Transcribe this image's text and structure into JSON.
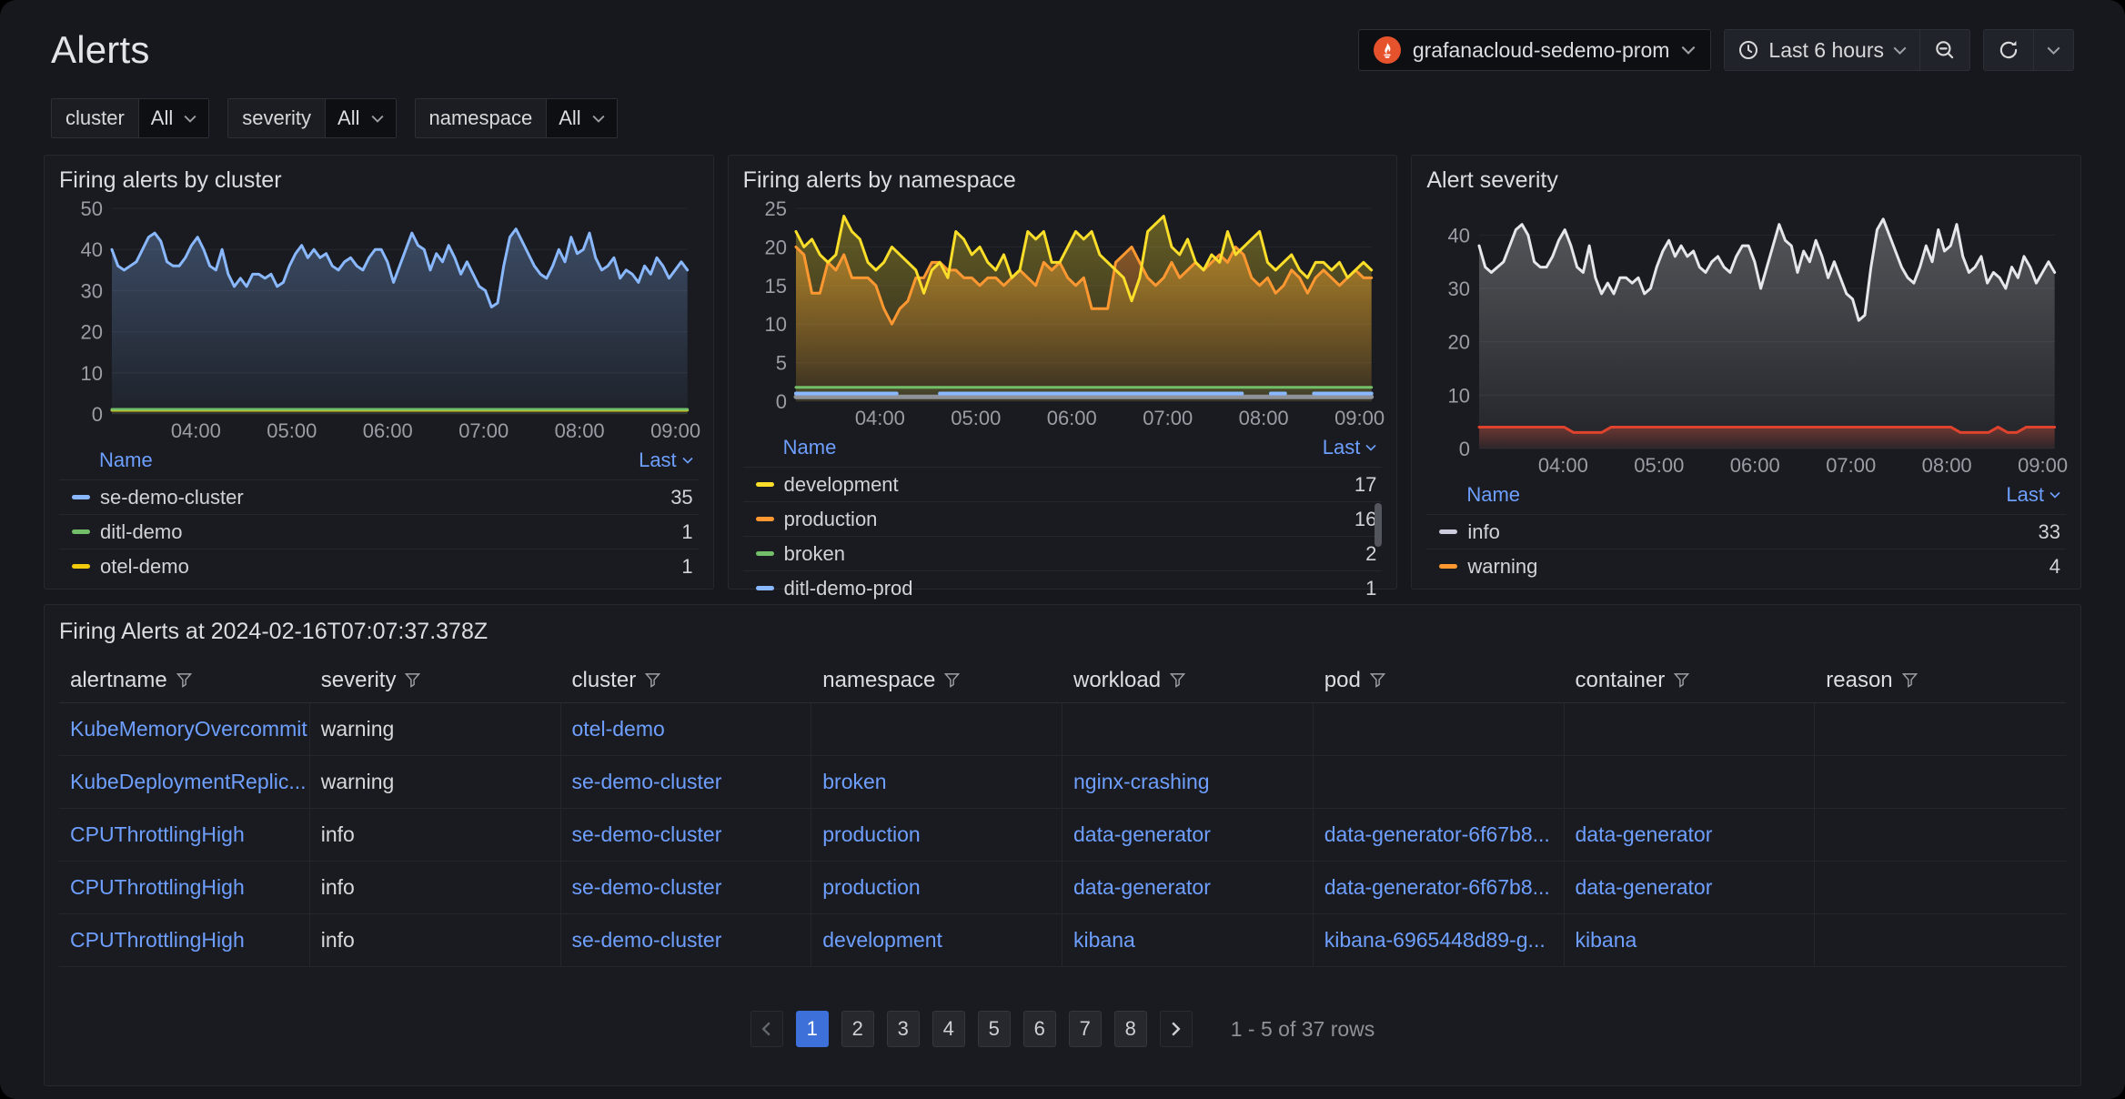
{
  "header": {
    "title": "Alerts",
    "datasource": "grafanacloud-sedemo-prom",
    "time_range": "Last 6 hours"
  },
  "colors": {
    "accent_blue": "#3d71d9",
    "link_blue": "#6e9fff",
    "prometheus_orange": "#e6522c",
    "warning_line_red": "#e0432d"
  },
  "filters": [
    {
      "label": "cluster",
      "value": "All"
    },
    {
      "label": "severity",
      "value": "All"
    },
    {
      "label": "namespace",
      "value": "All"
    }
  ],
  "panels": {
    "cluster": {
      "title": "Firing alerts by cluster",
      "legend": {
        "name_header": "Name",
        "last_header": "Last",
        "rows": [
          {
            "name": "se-demo-cluster",
            "value": "35",
            "color": "#8ab8ff"
          },
          {
            "name": "ditl-demo",
            "value": "1",
            "color": "#73bf69"
          },
          {
            "name": "otel-demo",
            "value": "1",
            "color": "#f2cc0c"
          }
        ]
      }
    },
    "namespace": {
      "title": "Firing alerts by namespace",
      "legend": {
        "name_header": "Name",
        "last_header": "Last",
        "rows": [
          {
            "name": "development",
            "value": "17",
            "color": "#fade2a"
          },
          {
            "name": "production",
            "value": "16",
            "color": "#ff9830"
          },
          {
            "name": "broken",
            "value": "2",
            "color": "#73bf69"
          },
          {
            "name": "ditl-demo-prod",
            "value": "1",
            "color": "#8ab8ff"
          }
        ]
      }
    },
    "severity": {
      "title": "Alert severity",
      "legend": {
        "name_header": "Name",
        "last_header": "Last",
        "rows": [
          {
            "name": "info",
            "value": "33",
            "color": "#ccccdc"
          },
          {
            "name": "warning",
            "value": "4",
            "color": "#ff9830"
          }
        ]
      }
    }
  },
  "chart_data": [
    {
      "type": "area",
      "title": "Firing alerts by cluster",
      "ylim": [
        0,
        50
      ],
      "yticks": [
        0,
        10,
        20,
        30,
        40,
        50
      ],
      "xticks": {
        "labels": [
          "04:00",
          "05:00",
          "06:00",
          "07:00",
          "08:00",
          "09:00"
        ],
        "fractions": [
          0.146,
          0.3127,
          0.4793,
          0.646,
          0.8127,
          0.9793
        ]
      },
      "legend_position": "bottom",
      "series": [
        {
          "name": "se-demo-cluster",
          "color": "#8ab8ff",
          "width": 3,
          "fill": 0.18,
          "values": [
            40,
            36,
            35,
            36,
            37,
            40,
            43,
            44,
            42,
            37,
            36,
            36,
            38,
            41,
            43,
            40,
            36,
            35,
            40,
            34,
            31,
            33,
            31,
            34,
            34,
            33,
            34,
            31,
            32,
            36,
            39,
            41,
            38,
            40,
            38,
            39,
            36,
            35,
            37,
            38,
            36,
            35,
            38,
            40,
            40,
            37,
            32,
            36,
            40,
            44,
            41,
            40,
            35,
            39,
            37,
            41,
            38,
            34,
            37,
            34,
            31,
            30,
            26,
            27,
            36,
            43,
            45,
            42,
            39,
            36,
            34,
            33,
            36,
            40,
            37,
            43,
            39,
            40,
            44,
            38,
            35,
            36,
            38,
            33,
            35,
            34,
            32,
            36,
            34,
            38,
            36,
            33,
            35,
            37,
            35
          ]
        },
        {
          "name": "ditl-demo",
          "color": "#73bf69",
          "width": 3,
          "fill": 0.1,
          "values": [
            1.1,
            1.1
          ]
        },
        {
          "name": "otel-demo",
          "color": "#f2cc0c",
          "width": 3,
          "fill": 0.1,
          "values": [
            0.9,
            0.9
          ]
        }
      ]
    },
    {
      "type": "area",
      "title": "Firing alerts by namespace",
      "ylim": [
        0,
        25
      ],
      "yticks": [
        0,
        5,
        10,
        15,
        20,
        25
      ],
      "xticks": {
        "labels": [
          "04:00",
          "05:00",
          "06:00",
          "07:00",
          "08:00",
          "09:00"
        ],
        "fractions": [
          0.146,
          0.3127,
          0.4793,
          0.646,
          0.8127,
          0.9793
        ]
      },
      "legend_position": "bottom",
      "series": [
        {
          "name": "development",
          "color": "#fade2a",
          "width": 3,
          "fill": 0.2,
          "values": [
            22,
            20,
            21,
            19,
            18,
            19,
            24,
            22,
            21,
            18,
            17,
            18,
            20,
            19,
            18,
            17,
            14,
            17,
            18,
            16,
            22,
            21,
            19,
            20,
            18,
            17,
            19,
            16,
            17,
            22,
            21,
            22,
            18,
            18,
            20,
            22,
            21,
            22,
            19,
            18,
            17,
            16,
            13,
            16,
            22,
            23,
            24,
            20,
            19,
            21,
            18,
            17,
            19,
            18,
            22,
            19,
            20,
            21,
            22,
            18,
            17,
            18,
            19,
            17,
            16,
            18,
            18,
            17,
            18,
            16,
            17,
            18,
            17
          ]
        },
        {
          "name": "production",
          "color": "#ff9830",
          "width": 3,
          "fill": 0.28,
          "values": [
            20,
            19,
            14,
            14,
            18,
            17,
            19,
            16,
            16,
            16,
            15,
            12,
            10,
            12,
            13,
            16,
            16,
            18,
            18,
            17,
            17,
            16,
            16,
            15,
            16,
            16,
            15,
            16,
            17,
            16,
            15,
            18,
            17,
            18,
            16,
            15,
            16,
            12,
            12,
            12,
            18,
            19,
            20,
            18,
            16,
            15,
            16,
            18,
            16,
            17,
            18,
            17,
            18,
            19,
            18,
            20,
            19,
            16,
            15,
            16,
            14,
            15,
            17,
            16,
            14,
            16,
            17,
            16,
            15,
            16,
            17,
            16,
            16
          ]
        },
        {
          "name": "broken",
          "color": "#73bf69",
          "width": 3,
          "fill": 0.1,
          "values": [
            1.8,
            1.8
          ]
        },
        {
          "name": "ditl-demo-prod",
          "color": "#8ab8ff",
          "width": 4,
          "fill": 0,
          "values": [
            1,
            1,
            1,
            1,
            1,
            1,
            1,
            1,
            null,
            null,
            1,
            1,
            1,
            1,
            1,
            1,
            1,
            1,
            1,
            1,
            1,
            1,
            1,
            1,
            1,
            1,
            1,
            1,
            1,
            1,
            1,
            1,
            null,
            1,
            1,
            null,
            1,
            1,
            1,
            1,
            1
          ]
        },
        {
          "name": "",
          "color": "#8e9298",
          "width": 5,
          "fill": 0,
          "values": [
            0.55,
            0.55
          ]
        }
      ]
    },
    {
      "type": "area",
      "title": "Alert severity",
      "ylim": [
        0,
        45
      ],
      "yticks": [
        0,
        10,
        20,
        30,
        40
      ],
      "xticks": {
        "labels": [
          "04:00",
          "05:00",
          "06:00",
          "07:00",
          "08:00",
          "09:00"
        ],
        "fractions": [
          0.146,
          0.3127,
          0.4793,
          0.646,
          0.8127,
          0.9793
        ]
      },
      "legend_position": "bottom",
      "series": [
        {
          "name": "info",
          "color": "#e6e7ea",
          "width": 3,
          "fill": 0.17,
          "values": [
            38,
            34,
            33,
            34,
            35,
            38,
            41,
            42,
            40,
            35,
            34,
            34,
            36,
            39,
            41,
            38,
            34,
            33,
            38,
            32,
            29,
            31,
            29,
            32,
            32,
            31,
            32,
            29,
            30,
            34,
            37,
            39,
            36,
            38,
            36,
            37,
            34,
            33,
            35,
            36,
            34,
            33,
            36,
            38,
            38,
            35,
            30,
            34,
            38,
            42,
            39,
            38,
            33,
            37,
            35,
            39,
            36,
            32,
            35,
            32,
            29,
            28,
            24,
            25,
            34,
            41,
            43,
            40,
            37,
            34,
            32,
            31,
            34,
            38,
            35,
            41,
            37,
            38,
            42,
            36,
            33,
            34,
            36,
            31,
            33,
            32,
            30,
            34,
            32,
            36,
            34,
            31,
            33,
            35,
            33
          ]
        },
        {
          "name": "warning",
          "color": "#e0432d",
          "width": 3,
          "fill": 0.22,
          "values": [
            4,
            4,
            4,
            4,
            4,
            4,
            4,
            4,
            4,
            4,
            3,
            3,
            3,
            3,
            4,
            4,
            4,
            4,
            4,
            4,
            4,
            4,
            4,
            4,
            4,
            4,
            4,
            4,
            4,
            4,
            4,
            4,
            4,
            4,
            4,
            4,
            4,
            4,
            4,
            4,
            4,
            4,
            4,
            4,
            4,
            4,
            4,
            4,
            4,
            4,
            4,
            3,
            3,
            3,
            3,
            4,
            3,
            3,
            4,
            4,
            4,
            4
          ]
        }
      ]
    }
  ],
  "table": {
    "title": "Firing Alerts at 2024-02-16T07:07:37.378Z",
    "columns": [
      "alertname",
      "severity",
      "cluster",
      "namespace",
      "workload",
      "pod",
      "container",
      "reason"
    ],
    "rows": [
      [
        "KubeMemoryOvercommit",
        "warning",
        "otel-demo",
        "",
        "",
        "",
        "",
        ""
      ],
      [
        "KubeDeploymentReplic...",
        "warning",
        "se-demo-cluster",
        "broken",
        "nginx-crashing",
        "",
        "",
        ""
      ],
      [
        "CPUThrottlingHigh",
        "info",
        "se-demo-cluster",
        "production",
        "data-generator",
        "data-generator-6f67b8...",
        "data-generator",
        ""
      ],
      [
        "CPUThrottlingHigh",
        "info",
        "se-demo-cluster",
        "production",
        "data-generator",
        "data-generator-6f67b8...",
        "data-generator",
        ""
      ],
      [
        "CPUThrottlingHigh",
        "info",
        "se-demo-cluster",
        "development",
        "kibana",
        "kibana-6965448d89-g...",
        "kibana",
        ""
      ]
    ]
  },
  "pagination": {
    "pages": [
      "1",
      "2",
      "3",
      "4",
      "5",
      "6",
      "7",
      "8"
    ],
    "active": "1",
    "summary": "1 - 5 of 37 rows"
  }
}
